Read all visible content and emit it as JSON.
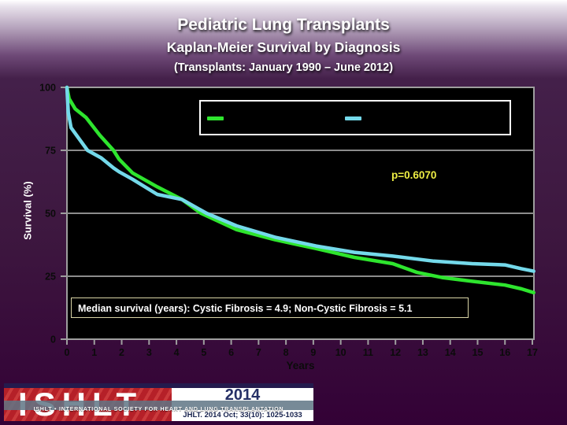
{
  "slide": {
    "title": "Pediatric Lung Transplants",
    "subtitle": "Kaplan-Meier Survival by Diagnosis",
    "date_range": "(Transplants: January 1990 – June 2012)"
  },
  "chart_data": {
    "type": "line",
    "title": "Pediatric Lung Transplants — Kaplan-Meier Survival by Diagnosis",
    "xlabel": "Years",
    "ylabel": "Survival (%)",
    "xlim": [
      0,
      17
    ],
    "ylim": [
      0,
      100
    ],
    "xticks": [
      0,
      1,
      2,
      3,
      4,
      5,
      6,
      7,
      8,
      9,
      10,
      11,
      12,
      13,
      14,
      15,
      16,
      17
    ],
    "yticks": [
      0,
      25,
      50,
      75,
      100
    ],
    "grid": "horizontal gridlines at 25/50/75, black plot background, gray border",
    "legend_position": "top-center box, labels not visible (black on black)",
    "annotations": {
      "p_value": "p=0.6070",
      "median_note": "Median survival (years): Cystic Fibrosis = 4.9; Non-Cystic Fibrosis = 5.1"
    },
    "series": [
      {
        "name": "Cystic Fibrosis",
        "color": "#2ee52e",
        "median_years": 4.9,
        "points": [
          [
            0,
            100
          ],
          [
            0.08,
            95.5
          ],
          [
            0.3,
            91.5
          ],
          [
            0.7,
            88
          ],
          [
            1.2,
            81
          ],
          [
            1.7,
            75
          ],
          [
            1.9,
            71.5
          ],
          [
            2.4,
            66
          ],
          [
            3.3,
            60.5
          ],
          [
            4.2,
            55.5
          ],
          [
            4.9,
            50
          ],
          [
            6.2,
            43.5
          ],
          [
            7.6,
            39.5
          ],
          [
            9.1,
            36
          ],
          [
            10.5,
            32.5
          ],
          [
            11.9,
            30
          ],
          [
            12.8,
            26.5
          ],
          [
            13.7,
            24.5
          ],
          [
            14.8,
            23
          ],
          [
            16,
            21.5
          ],
          [
            16.6,
            20
          ],
          [
            17.05,
            18.5
          ]
        ]
      },
      {
        "name": "Non-Cystic Fibrosis",
        "color": "#74d9ea",
        "median_years": 5.1,
        "points": [
          [
            0,
            100
          ],
          [
            0.05,
            90
          ],
          [
            0.15,
            84
          ],
          [
            0.45,
            79.5
          ],
          [
            0.75,
            75
          ],
          [
            1.25,
            72
          ],
          [
            1.7,
            68
          ],
          [
            1.9,
            66.5
          ],
          [
            2.4,
            63.5
          ],
          [
            3.3,
            57.5
          ],
          [
            4.2,
            55.5
          ],
          [
            5.1,
            50
          ],
          [
            6.2,
            45
          ],
          [
            7.6,
            40.5
          ],
          [
            9.1,
            37
          ],
          [
            10.5,
            34.5
          ],
          [
            11.9,
            33
          ],
          [
            13.4,
            31
          ],
          [
            14.8,
            30
          ],
          [
            16,
            29.5
          ],
          [
            16.6,
            28
          ],
          [
            17.05,
            27
          ]
        ]
      }
    ]
  },
  "axis": {
    "ylabel": "Survival (%)",
    "xlabel": "Years"
  },
  "annotations": {
    "p_value": "p=0.6070",
    "median_box": "Median survival (years): Cystic Fibrosis = 4.9; Non-Cystic Fibrosis = 5.1"
  },
  "footer": {
    "logo_text": "ISHLT",
    "banner_text": "ISHLT • INTERNATIONAL SOCIETY FOR HEART AND LUNG TRANSPLANTATION",
    "year": "2014",
    "citation": "JHLT. 2014 Oct; 33(10): 1025-1033"
  },
  "colors": {
    "slide_background": "#3d173f",
    "plot_background": "#000000",
    "grid_gray": "#8c8c8c",
    "border_gray": "#9e9e9e",
    "tick_label": "#0b0b0b",
    "title_text": "#ffffff",
    "p_value_yellow": "#eeee44",
    "median_box_border": "#d9d4a6",
    "logo_red": "#b52028",
    "logo_band_gray": "#5f7585",
    "logo_navy": "#252f66",
    "series_green": "#2ee52e",
    "series_cyan": "#74d9ea"
  }
}
